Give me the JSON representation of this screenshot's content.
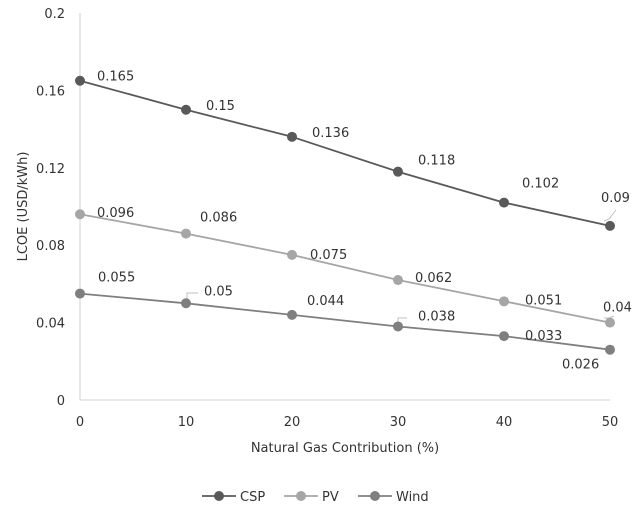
{
  "chart_data": {
    "type": "line",
    "title": "",
    "xlabel": "Natural Gas Contribution (%)",
    "ylabel": "LCOE (USD/kWh)",
    "x": [
      0,
      10,
      20,
      30,
      40,
      50
    ],
    "x_ticks": [
      "0",
      "10",
      "20",
      "30",
      "40",
      "50"
    ],
    "ylim": [
      0,
      0.2
    ],
    "y_ticks": [
      "0",
      "0.04",
      "0.08",
      "0.12",
      "0.16",
      "0.2"
    ],
    "grid": false,
    "legend_position": "bottom",
    "series": [
      {
        "name": "CSP",
        "color": "#595959",
        "values": [
          0.165,
          0.15,
          0.136,
          0.118,
          0.102,
          0.09
        ],
        "labels": [
          "0.165",
          "0.15",
          "0.136",
          "0.118",
          "0.102",
          "0.09"
        ]
      },
      {
        "name": "PV",
        "color": "#a6a6a6",
        "values": [
          0.096,
          0.086,
          0.075,
          0.062,
          0.051,
          0.04
        ],
        "labels": [
          "0.096",
          "0.086",
          "0.075",
          "0.062",
          "0.051",
          "0.04"
        ]
      },
      {
        "name": "Wind",
        "color": "#7f7f7f",
        "values": [
          0.055,
          0.05,
          0.044,
          0.038,
          0.033,
          0.026
        ],
        "labels": [
          "0.055",
          "0.05",
          "0.044",
          "0.038",
          "0.033",
          "0.026"
        ]
      }
    ]
  }
}
